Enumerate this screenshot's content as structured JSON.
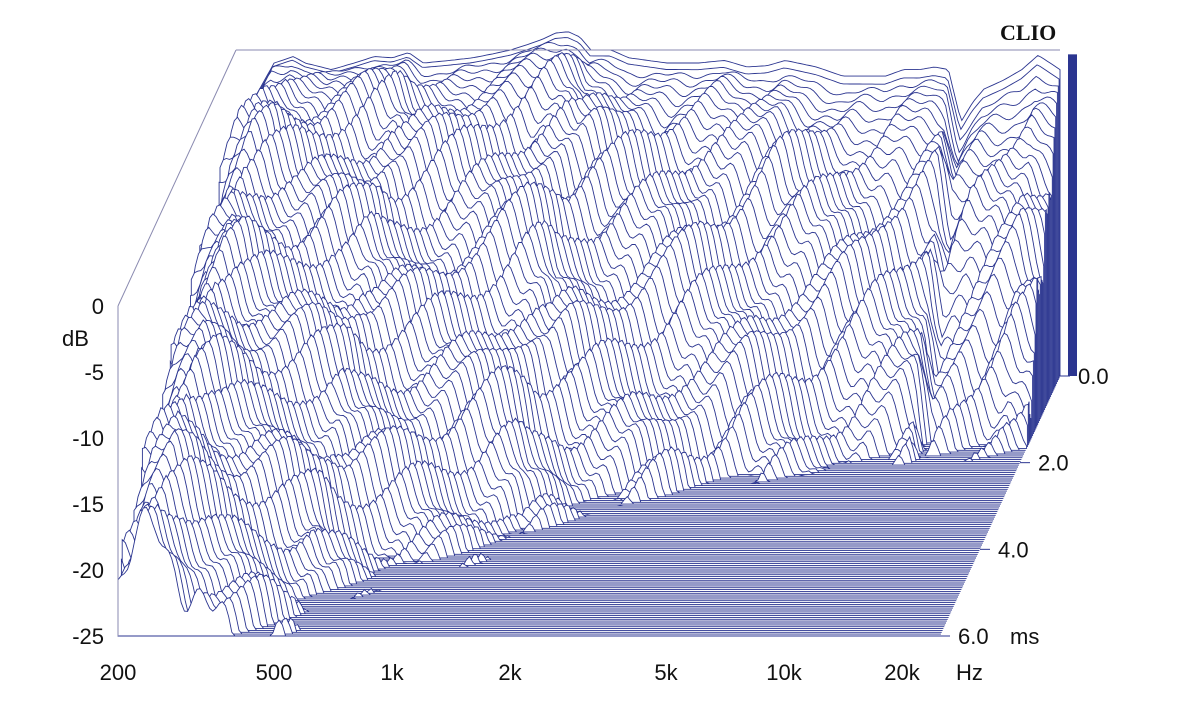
{
  "brand": "CLIO",
  "colors": {
    "trace": "#2b3590",
    "frame": "#8a8ab0",
    "background": "#ffffff"
  },
  "chart_data": {
    "type": "area",
    "subtype": "waterfall-3d",
    "title": "",
    "xlabel": "Hz",
    "ylabel": "dB",
    "zlabel": "ms",
    "x_scale": "log",
    "xlim": [
      200,
      25000
    ],
    "ylim": [
      -25,
      0
    ],
    "zlim": [
      0,
      6
    ],
    "x_ticks": [
      "200",
      "500",
      "1k",
      "2k",
      "5k",
      "10k",
      "20k"
    ],
    "x_tick_values": [
      200,
      500,
      1000,
      2000,
      5000,
      10000,
      20000
    ],
    "y_ticks": [
      "0",
      "-5",
      "-10",
      "-15",
      "-20",
      "-25"
    ],
    "y_tick_values": [
      0,
      -5,
      -10,
      -15,
      -20,
      -25
    ],
    "z_ticks": [
      "0.0",
      "2.0",
      "4.0",
      "6.0"
    ],
    "z_tick_values": [
      0,
      2,
      4,
      6
    ],
    "front_response": {
      "freq_hz": [
        200,
        220,
        250,
        280,
        300,
        350,
        400,
        450,
        500,
        550,
        600,
        700,
        800,
        900,
        1000,
        1100,
        1200,
        1300,
        1400,
        1500,
        1600,
        1800,
        2000,
        2500,
        3000,
        3500,
        4000,
        4500,
        5000,
        6000,
        7000,
        8000,
        9000,
        10000,
        11000,
        12000,
        13000,
        14000,
        15000,
        16000,
        18000,
        20000,
        22000,
        25000
      ],
      "db": [
        -8,
        -4,
        -1,
        -0.5,
        -1,
        -1.5,
        -1,
        -0.5,
        -0.6,
        -0.2,
        -1,
        -0.8,
        -0.6,
        -0.3,
        0,
        0.4,
        0.8,
        1.3,
        1.4,
        1,
        0,
        0,
        -0.6,
        -1,
        -1,
        -0.8,
        -1.3,
        -1.2,
        -0.8,
        -1.3,
        -2,
        -2,
        -2,
        -1.5,
        -1.5,
        -1.3,
        -1.5,
        -5.5,
        -4,
        -3,
        -2.3,
        -1.5,
        -0.4,
        -1.5
      ]
    },
    "decay_slices": 140
  }
}
